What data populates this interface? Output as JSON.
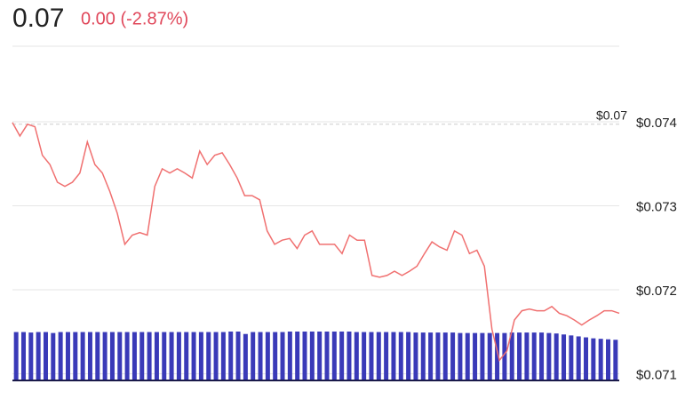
{
  "chart_data": {
    "type": "line",
    "title": "0.07",
    "subtitle": "0.00 (-2.87%)",
    "ylim": [
      0.07092,
      0.07492
    ],
    "yticks": [
      {
        "value": 0.074,
        "label": "$0.074"
      },
      {
        "value": 0.073,
        "label": "$0.073"
      },
      {
        "value": 0.072,
        "label": "$0.072"
      },
      {
        "value": 0.071,
        "label": "$0.071"
      }
    ],
    "grid": true,
    "reference_line": {
      "value": 0.07397,
      "label": "$0.07"
    },
    "series": [
      {
        "color": "#f07070",
        "values": [
          0.07399,
          0.07383,
          0.07397,
          0.07394,
          0.0736,
          0.07349,
          0.07328,
          0.07323,
          0.07328,
          0.07339,
          0.07376,
          0.07349,
          0.07339,
          0.07317,
          0.07291,
          0.07254,
          0.07265,
          0.07268,
          0.07265,
          0.07323,
          0.07344,
          0.07339,
          0.07344,
          0.07339,
          0.07333,
          0.07365,
          0.07349,
          0.0736,
          0.07363,
          0.07349,
          0.07333,
          0.07312,
          0.07312,
          0.07307,
          0.0727,
          0.07254,
          0.07259,
          0.07261,
          0.07249,
          0.07265,
          0.0727,
          0.07254,
          0.07254,
          0.07254,
          0.07243,
          0.07265,
          0.07259,
          0.07259,
          0.07217,
          0.07215,
          0.07217,
          0.07222,
          0.07217,
          0.07222,
          0.07228,
          0.07243,
          0.07257,
          0.07251,
          0.07247,
          0.0727,
          0.07265,
          0.07243,
          0.07247,
          0.07228,
          0.07153,
          0.07116,
          0.07127,
          0.07164,
          0.07175,
          0.07177,
          0.07175,
          0.07175,
          0.0718,
          0.07172,
          0.07169,
          0.07164,
          0.07158,
          0.07164,
          0.07169,
          0.07175,
          0.07175,
          0.07172
        ]
      }
    ],
    "volume": {
      "color": "#3a3ab8",
      "values": [
        100,
        100,
        99,
        100,
        100,
        98,
        100,
        100,
        100,
        100,
        100,
        100,
        100,
        100,
        100,
        100,
        100,
        100,
        100,
        100,
        100,
        100,
        100,
        100,
        100,
        100,
        100,
        100,
        100,
        101,
        101,
        96,
        100,
        100,
        100,
        100,
        100,
        101,
        101,
        101,
        101,
        101,
        101,
        101,
        101,
        101,
        100,
        100,
        100,
        100,
        100,
        100,
        100,
        100,
        99,
        99,
        99,
        99,
        99,
        99,
        98,
        98,
        98,
        98,
        98,
        98,
        98,
        99,
        99,
        99,
        99,
        99,
        98,
        97,
        95,
        93,
        91,
        89,
        87,
        86,
        85,
        84
      ]
    }
  }
}
